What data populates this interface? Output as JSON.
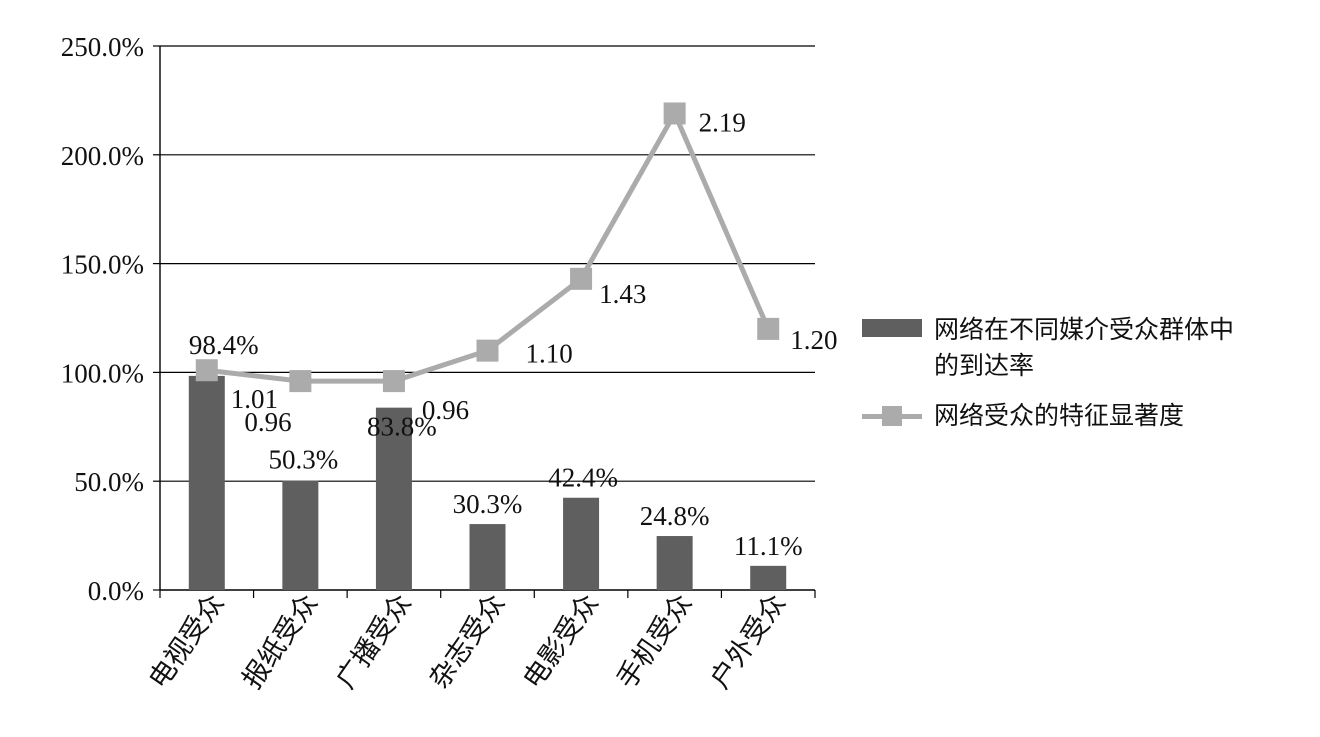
{
  "chart_data": {
    "type": "bar",
    "categories": [
      "电视受众",
      "报纸受众",
      "广播受众",
      "杂志受众",
      "电影受众",
      "手机受众",
      "户外受众"
    ],
    "series": [
      {
        "name": "网络在不同媒介受众群体中的到达率",
        "type": "bar",
        "values": [
          98.4,
          50.3,
          83.8,
          30.3,
          42.4,
          24.8,
          11.1
        ],
        "labels": [
          "98.4%",
          "50.3%",
          "83.8%",
          "30.3%",
          "42.4%",
          "24.8%",
          "11.1%"
        ],
        "color": "#5f5f5f"
      },
      {
        "name": "网络受众的特征显著度",
        "type": "line",
        "values": [
          1.01,
          0.96,
          0.96,
          1.1,
          1.43,
          2.19,
          1.2
        ],
        "labels": [
          "1.01",
          "0.96",
          "0.96",
          "1.10",
          "1.43",
          "2.19",
          "1.20"
        ],
        "color": "#ababab"
      }
    ],
    "yticks": [
      "0.0%",
      "50.0%",
      "100.0%",
      "150.0%",
      "200.0%",
      "250.0%"
    ],
    "ylim": [
      0,
      250
    ],
    "grid": true,
    "legend_position": "right"
  },
  "legend": {
    "bar_label_line1": "网络在不同媒介受众群体中",
    "bar_label_line2": "的到达率",
    "line_label": "网络受众的特征显著度"
  }
}
